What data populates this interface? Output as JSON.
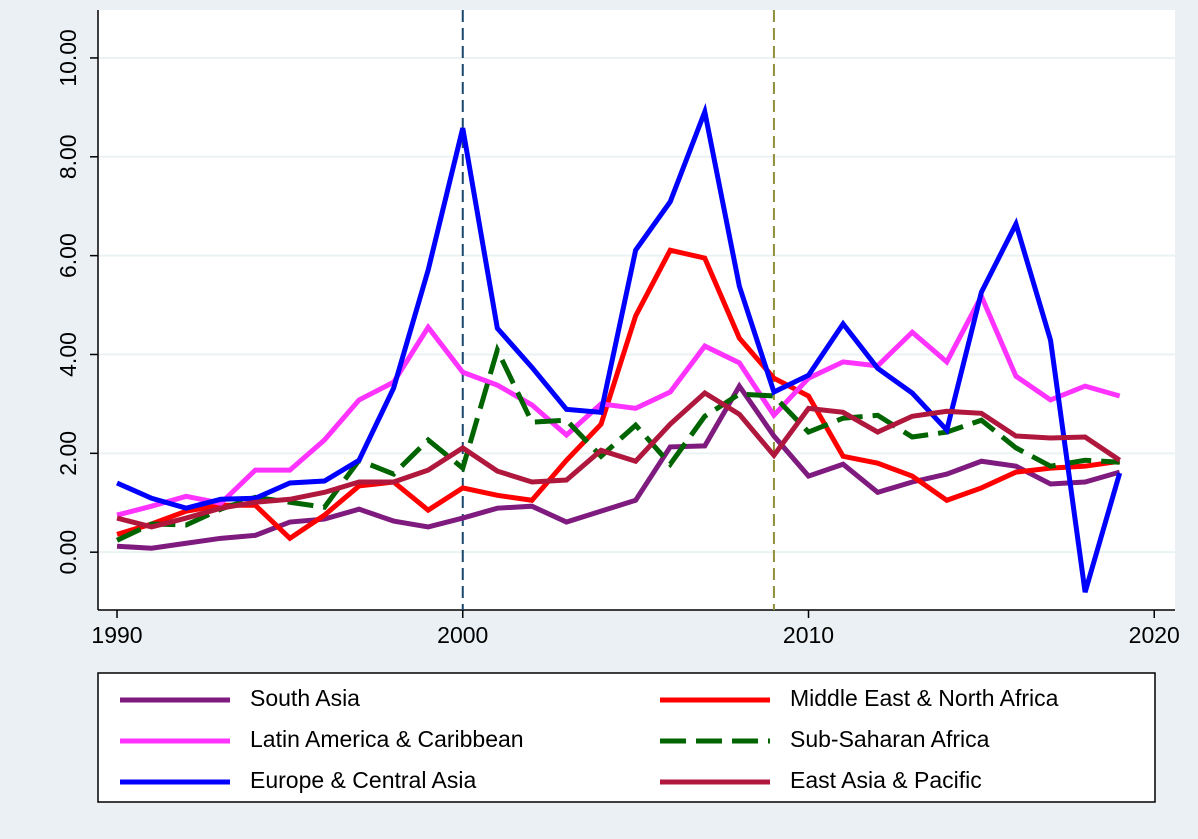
{
  "chart_data": {
    "type": "line",
    "x": [
      1990,
      1991,
      1992,
      1993,
      1994,
      1995,
      1996,
      1997,
      1998,
      1999,
      2000,
      2001,
      2002,
      2003,
      2004,
      2005,
      2006,
      2007,
      2008,
      2009,
      2010,
      2011,
      2012,
      2013,
      2014,
      2015,
      2016,
      2017,
      2018,
      2019
    ],
    "series": [
      {
        "name": "South Asia",
        "color": "#7f1a7f",
        "values": [
          0.12,
          0.08,
          0.18,
          0.28,
          0.34,
          0.61,
          0.67,
          0.87,
          0.63,
          0.51,
          0.69,
          0.89,
          0.93,
          0.61,
          0.83,
          1.05,
          2.13,
          2.15,
          3.36,
          2.35,
          1.54,
          1.78,
          1.21,
          1.42,
          1.58,
          1.84,
          1.74,
          1.38,
          1.42,
          1.62
        ]
      },
      {
        "name": "Middle East & North Africa",
        "color": "#ff0000",
        "values": [
          0.36,
          0.57,
          0.83,
          0.95,
          0.95,
          0.28,
          0.75,
          1.34,
          1.42,
          0.85,
          1.3,
          1.15,
          1.05,
          1.86,
          2.59,
          4.78,
          6.11,
          5.95,
          4.33,
          3.52,
          3.16,
          1.94,
          1.8,
          1.54,
          1.05,
          1.3,
          1.62,
          1.7,
          1.74,
          1.84
        ]
      },
      {
        "name": "Latin America & Caribbean",
        "color": "#ff33ff",
        "values": [
          0.75,
          0.93,
          1.13,
          0.99,
          1.66,
          1.66,
          2.27,
          3.08,
          3.44,
          4.55,
          3.64,
          3.38,
          2.98,
          2.37,
          3.0,
          2.91,
          3.24,
          4.17,
          3.83,
          2.77,
          3.52,
          3.85,
          3.77,
          4.45,
          3.85,
          5.18,
          3.56,
          3.08,
          3.36,
          3.16
        ]
      },
      {
        "name": "Sub-Saharan Africa",
        "color": "#006400",
        "dashed": true,
        "values": [
          0.24,
          0.57,
          0.55,
          0.87,
          1.11,
          1.01,
          0.91,
          1.86,
          1.58,
          2.27,
          1.7,
          4.09,
          2.63,
          2.67,
          1.94,
          2.57,
          1.78,
          2.75,
          3.2,
          3.16,
          2.43,
          2.71,
          2.77,
          2.33,
          2.43,
          2.67,
          2.11,
          1.74,
          1.86,
          1.82
        ]
      },
      {
        "name": "Europe & Central Asia",
        "color": "#0000ff",
        "values": [
          1.4,
          1.09,
          0.89,
          1.07,
          1.09,
          1.4,
          1.44,
          1.86,
          3.32,
          5.71,
          8.58,
          4.53,
          3.74,
          2.89,
          2.83,
          6.11,
          7.09,
          8.91,
          5.38,
          3.24,
          3.58,
          4.62,
          3.72,
          3.22,
          2.47,
          5.26,
          6.64,
          4.29,
          -0.81,
          1.6
        ]
      },
      {
        "name": "East Asia & Pacific",
        "color": "#b0173d",
        "values": [
          0.69,
          0.51,
          0.69,
          0.89,
          1.01,
          1.07,
          1.21,
          1.42,
          1.42,
          1.66,
          2.11,
          1.64,
          1.42,
          1.46,
          2.06,
          1.84,
          2.59,
          3.22,
          2.79,
          1.96,
          2.91,
          2.83,
          2.43,
          2.75,
          2.85,
          2.81,
          2.35,
          2.31,
          2.33,
          1.86
        ]
      }
    ],
    "xlim": [
      1989.45,
      2020.6
    ],
    "xticks": [
      1990,
      2000,
      2010,
      2020
    ],
    "ylim": [
      -1.17,
      10.97
    ],
    "yticks": [
      {
        "value": 0,
        "label": "0.00"
      },
      {
        "value": 2,
        "label": "2.00"
      },
      {
        "value": 4,
        "label": "4.00"
      },
      {
        "value": 6,
        "label": "6.00"
      },
      {
        "value": 8,
        "label": "8.00"
      },
      {
        "value": 10,
        "label": "10.00"
      }
    ],
    "grid": true,
    "reference_lines": [
      {
        "x": 2000,
        "color": "#1a476f"
      },
      {
        "x": 2009,
        "color": "#90903a"
      }
    ],
    "legend": "bottom"
  }
}
